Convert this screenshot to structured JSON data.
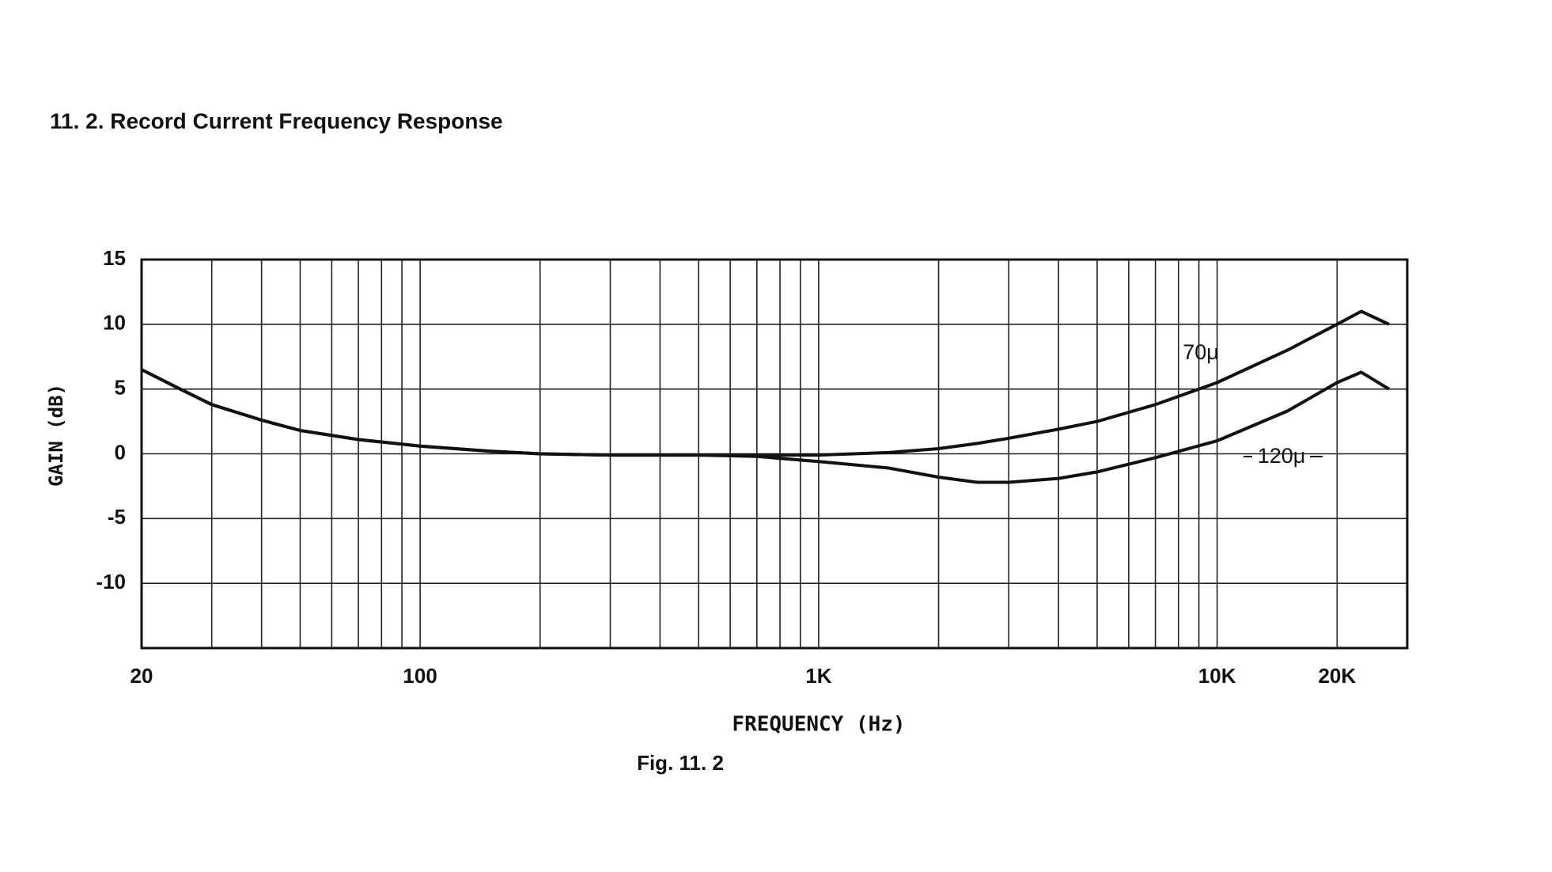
{
  "chart_data": {
    "type": "line",
    "title": "11. 2.   Record Current Frequency Response",
    "xlabel": "FREQUENCY (Hz)",
    "ylabel": "GAIN (dB)",
    "caption": "Fig. 11. 2",
    "xscale": "log",
    "xlim": [
      20,
      30000
    ],
    "ylim": [
      -15,
      15
    ],
    "xticks": [
      20,
      100,
      {
        "value": 1000,
        "label": "1K"
      },
      {
        "value": 10000,
        "label": "10K"
      },
      {
        "value": 20000,
        "label": "20K"
      }
    ],
    "xgrid": [
      30,
      40,
      50,
      60,
      70,
      80,
      90,
      200,
      300,
      400,
      500,
      600,
      700,
      800,
      900,
      2000,
      3000,
      4000,
      5000,
      6000,
      7000,
      8000,
      9000
    ],
    "yticks": [
      15,
      10,
      5,
      0,
      -5,
      -10
    ],
    "grid": true,
    "x": [
      20,
      25,
      30,
      40,
      50,
      70,
      100,
      150,
      200,
      300,
      500,
      700,
      1000,
      1500,
      2000,
      2500,
      3000,
      4000,
      5000,
      7000,
      10000,
      15000,
      20000,
      23000,
      27000
    ],
    "series": [
      {
        "name": "70μ",
        "color": "#111111",
        "values": [
          6.5,
          5,
          3.8,
          2.6,
          1.8,
          1.1,
          0.6,
          0.2,
          0,
          -0.1,
          -0.1,
          -0.1,
          -0.1,
          0.1,
          0.4,
          0.8,
          1.2,
          1.9,
          2.5,
          3.8,
          5.5,
          8,
          10,
          11,
          10
        ]
      },
      {
        "name": "120μ",
        "color": "#111111",
        "values": [
          6.5,
          5,
          3.8,
          2.6,
          1.8,
          1.1,
          0.6,
          0.2,
          0,
          -0.1,
          -0.1,
          -0.2,
          -0.6,
          -1.1,
          -1.8,
          -2.2,
          -2.2,
          -1.9,
          -1.4,
          -0.3,
          1,
          3.3,
          5.5,
          6.3,
          5
        ]
      }
    ]
  }
}
